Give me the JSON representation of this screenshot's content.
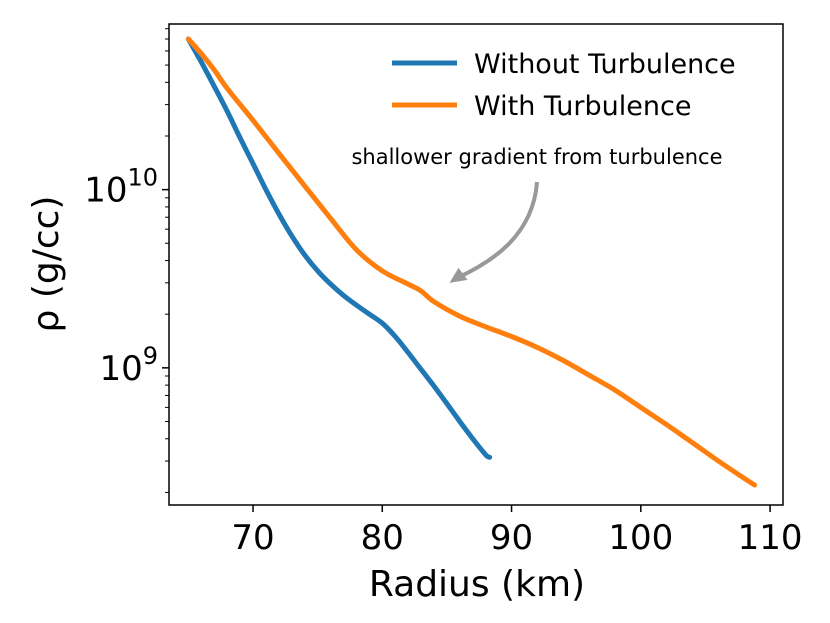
{
  "chart_data": {
    "type": "line",
    "xlabel": "Radius (km)",
    "ylabel": "ρ (g/cc)",
    "y_scale": "log",
    "xlim": [
      63.5,
      111
    ],
    "ylim": [
      170000000.0,
      85000000000.0
    ],
    "x_ticks": [
      {
        "value": 70,
        "label": "70"
      },
      {
        "value": 80,
        "label": "80"
      },
      {
        "value": 90,
        "label": "90"
      },
      {
        "value": 100,
        "label": "100"
      },
      {
        "value": 110,
        "label": "110"
      }
    ],
    "y_ticks": [
      {
        "value": 1000000000.0,
        "base": "10",
        "exp": "9"
      },
      {
        "value": 10000000000.0,
        "base": "10",
        "exp": "10"
      }
    ],
    "legend": {
      "placement": "top-right"
    },
    "series": [
      {
        "name": "Without Turbulence",
        "color": "#1f77b4",
        "points": [
          [
            65,
            70000000000.0
          ],
          [
            66,
            52000000000.0
          ],
          [
            67,
            38000000000.0
          ],
          [
            68,
            27500000000.0
          ],
          [
            69,
            19500000000.0
          ],
          [
            70,
            14000000000.0
          ],
          [
            71,
            10000000000.0
          ],
          [
            72,
            7300000000.0
          ],
          [
            73,
            5500000000.0
          ],
          [
            74,
            4300000000.0
          ],
          [
            75,
            3500000000.0
          ],
          [
            76,
            2950000000.0
          ],
          [
            77,
            2550000000.0
          ],
          [
            78,
            2250000000.0
          ],
          [
            79,
            2000000000.0
          ],
          [
            80,
            1780000000.0
          ],
          [
            81,
            1500000000.0
          ],
          [
            82,
            1220000000.0
          ],
          [
            83,
            980000000.0
          ],
          [
            84,
            790000000.0
          ],
          [
            85,
            630000000.0
          ],
          [
            86,
            500000000.0
          ],
          [
            87,
            400000000.0
          ],
          [
            88,
            325000000.0
          ],
          [
            88.3,
            315000000.0
          ]
        ]
      },
      {
        "name": "With Turbulence",
        "color": "#ff7f0e",
        "points": [
          [
            65,
            70000000000.0
          ],
          [
            66,
            58000000000.0
          ],
          [
            67,
            47000000000.0
          ],
          [
            68,
            37000000000.0
          ],
          [
            70,
            24500000000.0
          ],
          [
            72,
            16000000000.0
          ],
          [
            74,
            10500000000.0
          ],
          [
            76,
            6900000000.0
          ],
          [
            78,
            4600000000.0
          ],
          [
            80,
            3500000000.0
          ],
          [
            82,
            2950000000.0
          ],
          [
            83,
            2700000000.0
          ],
          [
            84,
            2350000000.0
          ],
          [
            86,
            1950000000.0
          ],
          [
            88,
            1700000000.0
          ],
          [
            90,
            1500000000.0
          ],
          [
            92,
            1300000000.0
          ],
          [
            94,
            1100000000.0
          ],
          [
            96,
            910000000.0
          ],
          [
            98,
            750000000.0
          ],
          [
            100,
            600000000.0
          ],
          [
            102,
            480000000.0
          ],
          [
            104,
            380000000.0
          ],
          [
            106,
            300000000.0
          ],
          [
            108,
            240000000.0
          ],
          [
            108.8,
            220000000.0
          ]
        ]
      }
    ],
    "annotation": {
      "text": "shallower gradient from turbulence",
      "color": "#999999",
      "arrow_target": [
        85.2,
        3000000000.0
      ]
    }
  }
}
